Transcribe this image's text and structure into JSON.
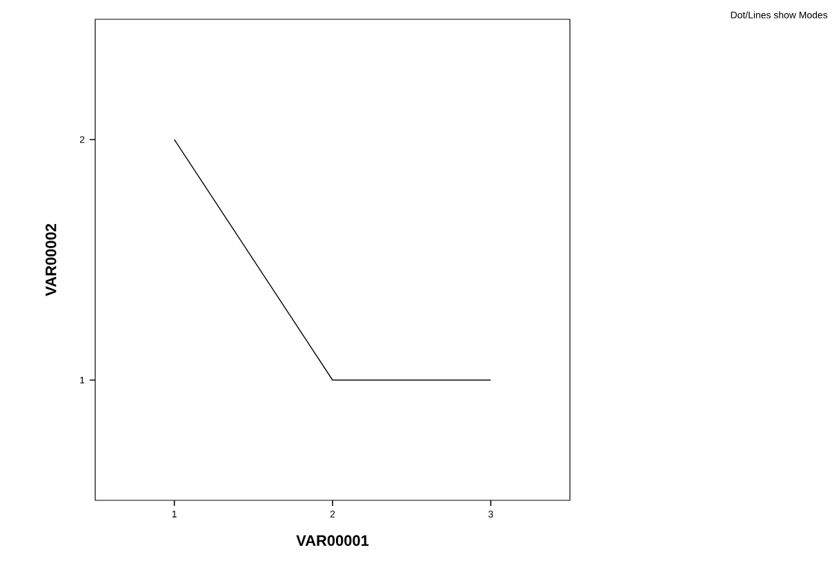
{
  "chart_data": {
    "type": "line",
    "xlabel": "VAR00001",
    "ylabel": "VAR00002",
    "categories": [
      "1",
      "2",
      "3"
    ],
    "values": [
      2,
      1,
      1
    ],
    "color": "#000000",
    "ylim": [
      0.5,
      2.5
    ],
    "yticks": [
      1,
      2
    ],
    "annotations": [
      "Dot/Lines show Modes"
    ]
  }
}
